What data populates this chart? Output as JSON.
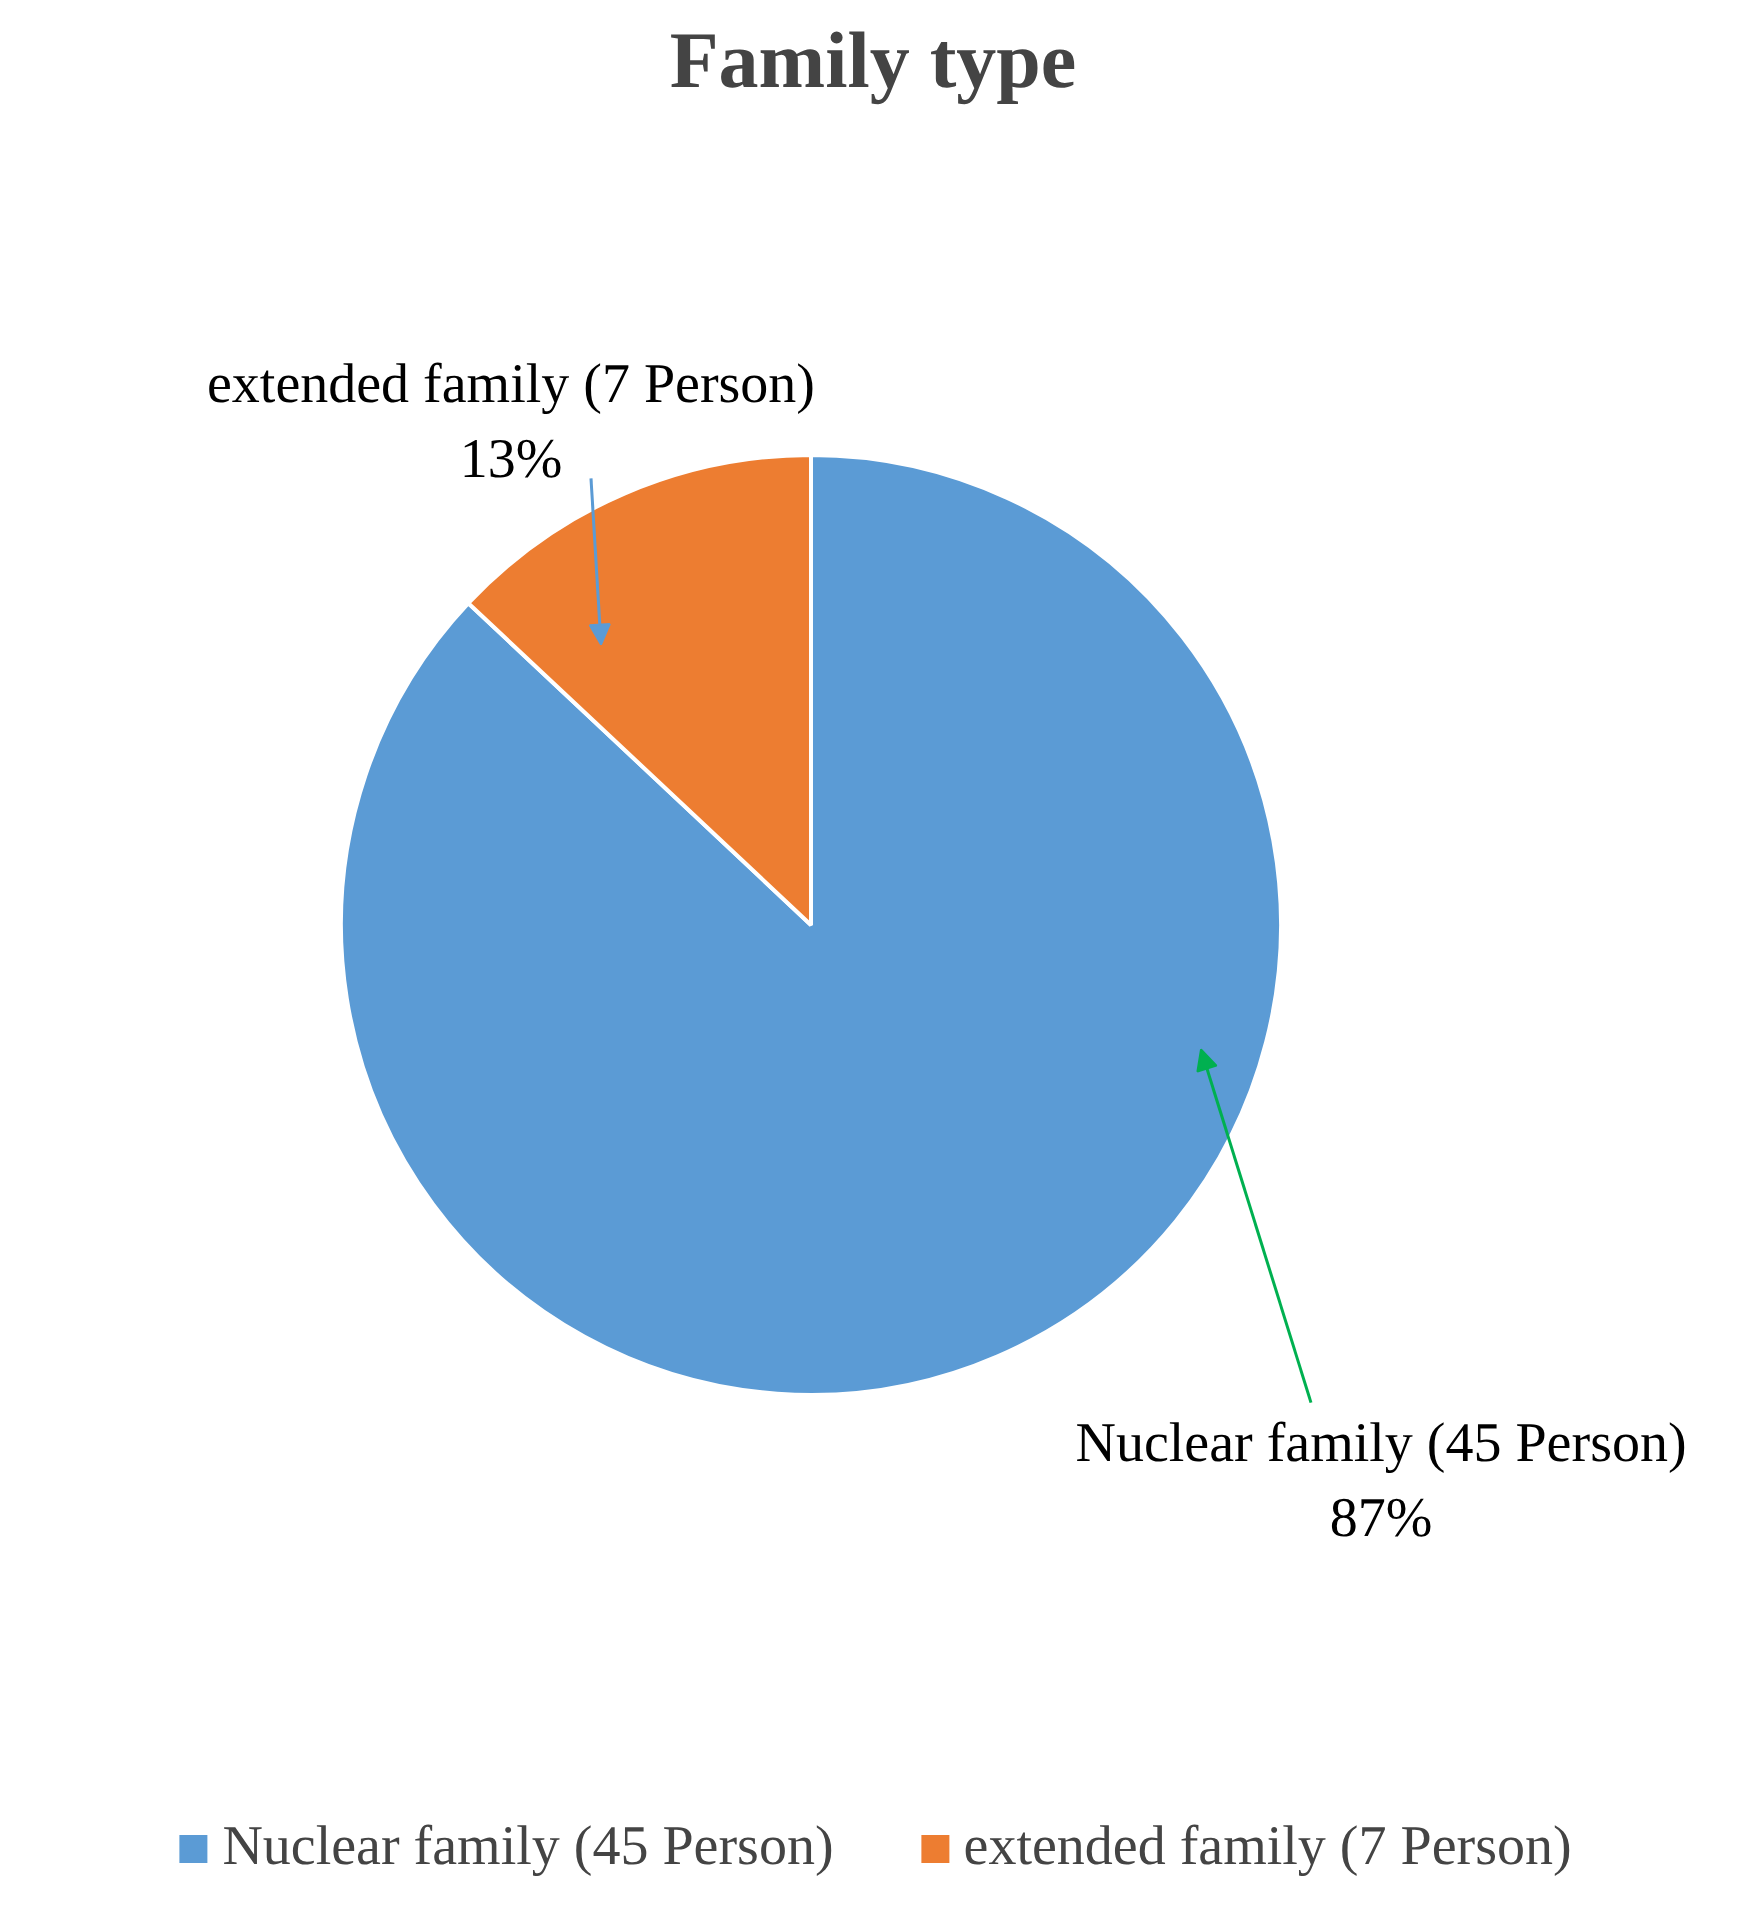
{
  "chart_data": {
    "type": "pie",
    "title": "Family type",
    "categories": [
      "Nuclear family (45 Person)",
      "extended family (7 Person)"
    ],
    "values": [
      87,
      13
    ],
    "colors": [
      "#5b9bd5",
      "#ed7d31"
    ],
    "value_labels": [
      "87%",
      "13%"
    ],
    "legend": "bottom"
  }
}
